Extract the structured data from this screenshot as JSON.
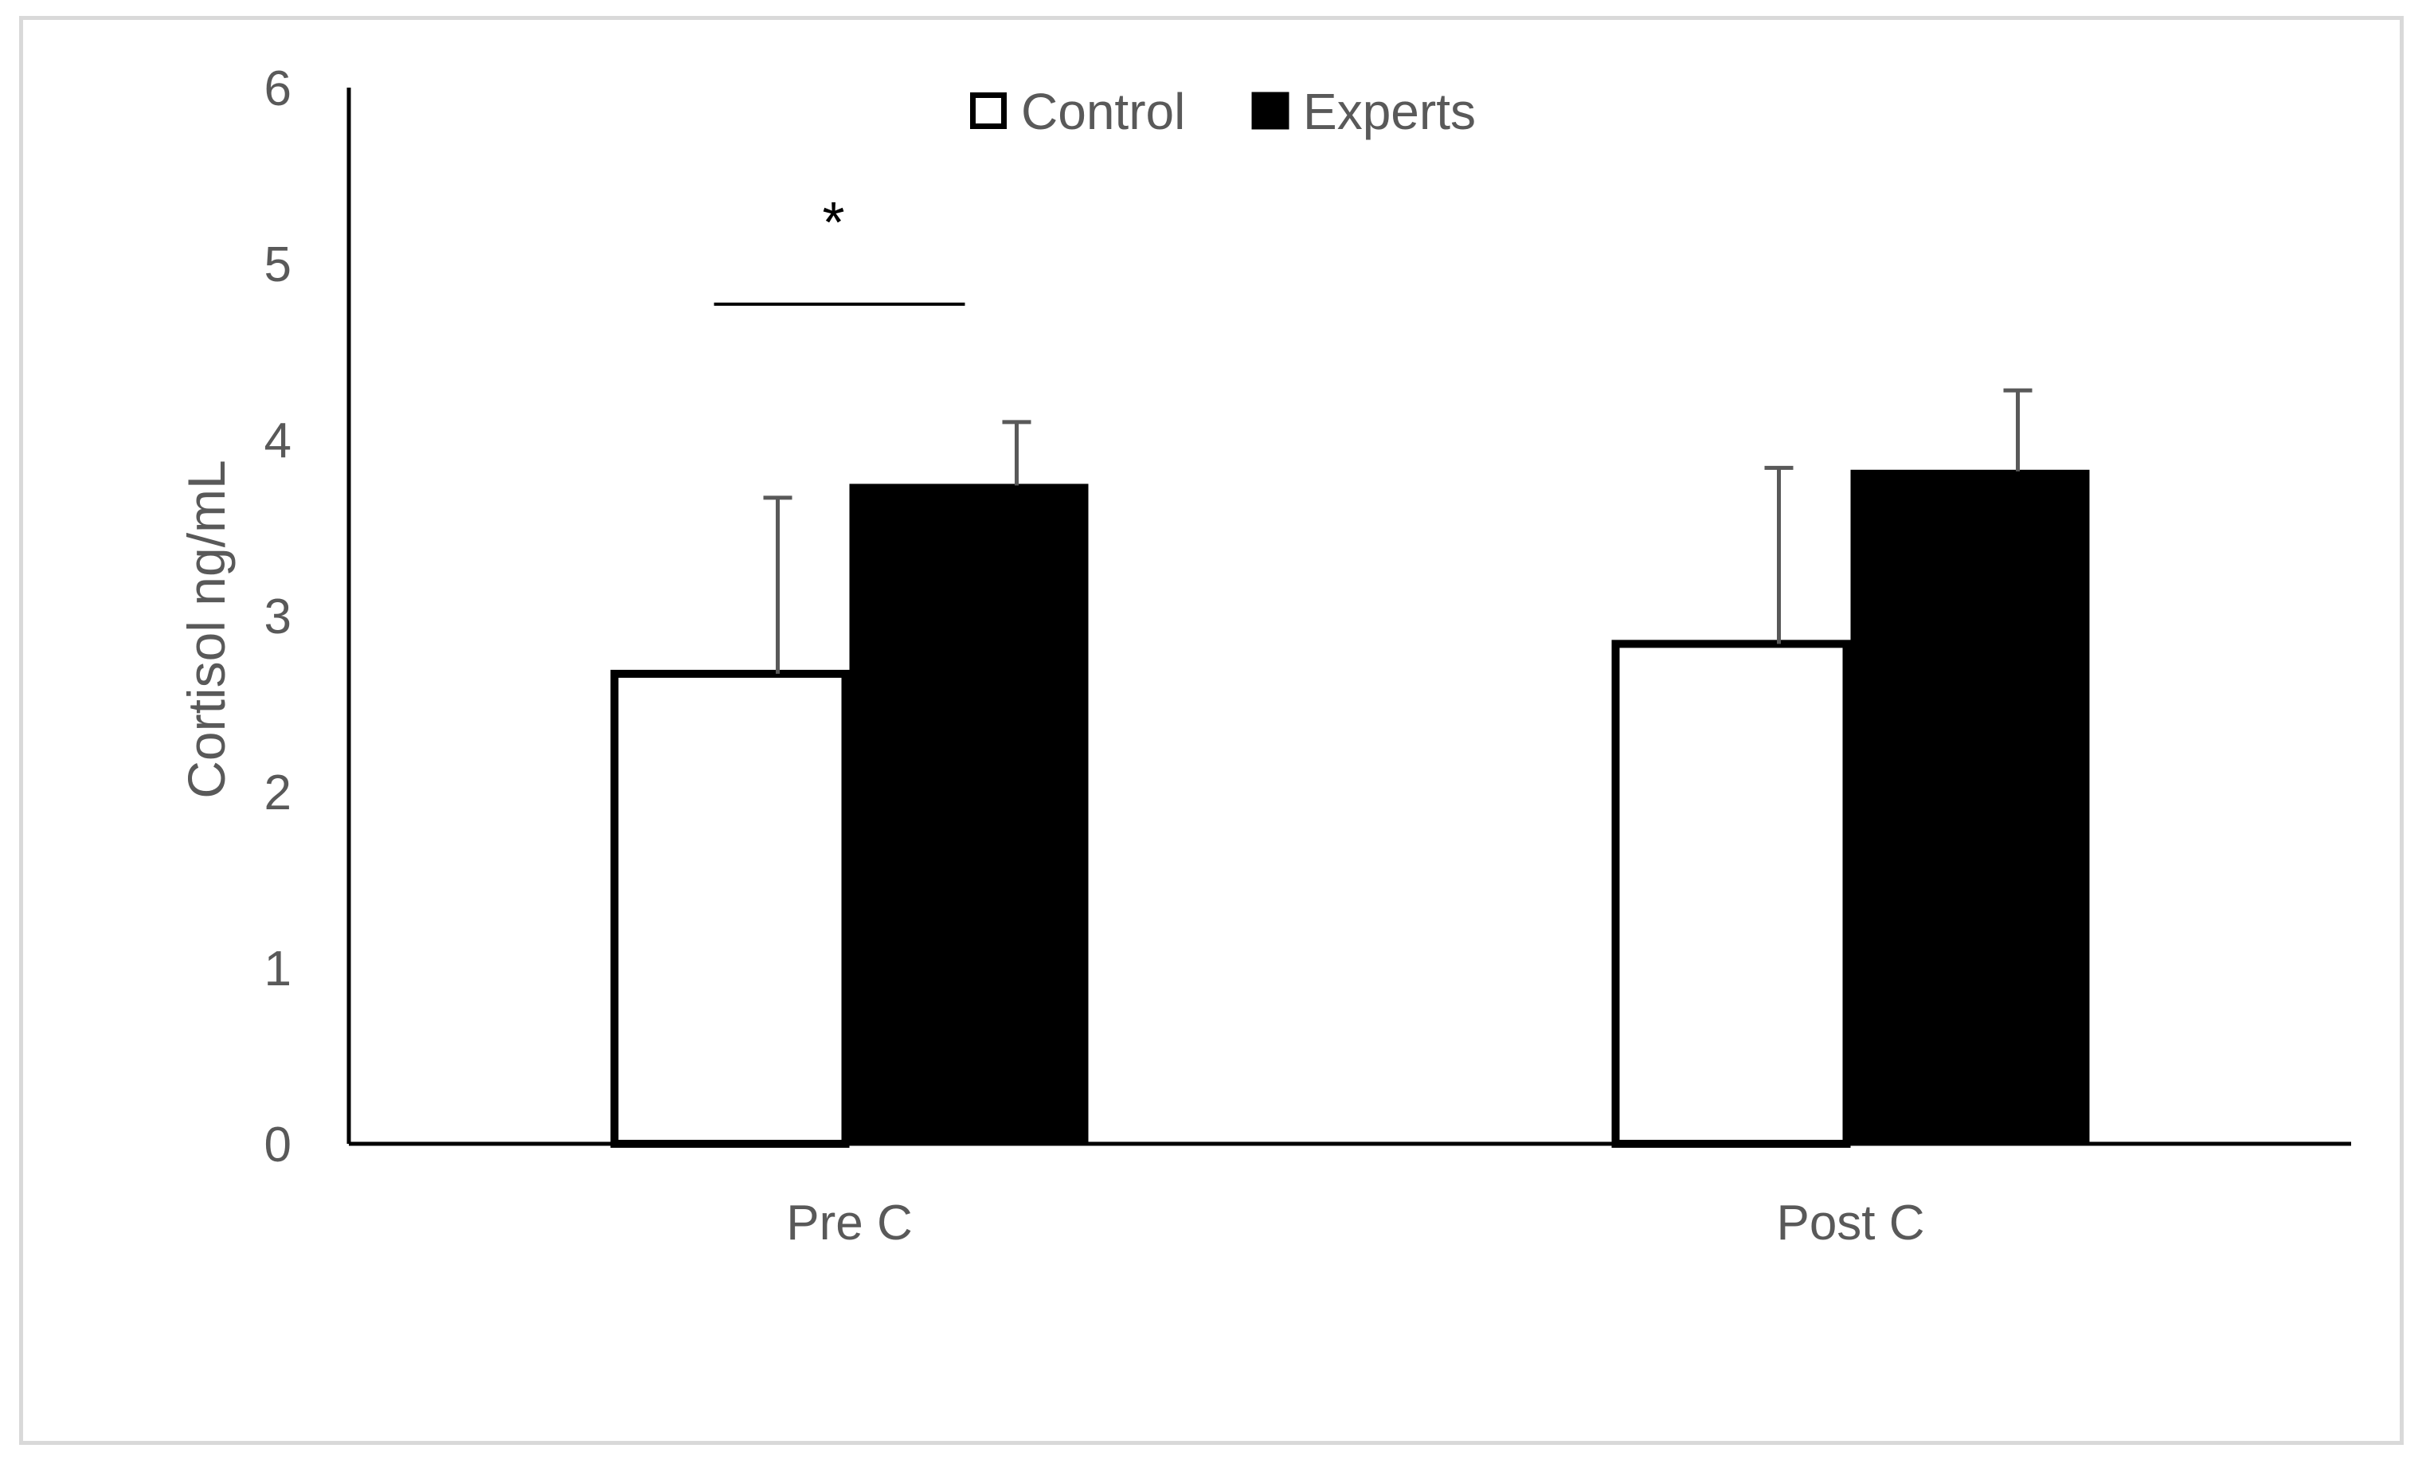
{
  "chart_data": {
    "type": "bar",
    "categories": [
      "Pre C",
      "Post C"
    ],
    "series": [
      {
        "name": "Control",
        "values": [
          2.67,
          2.84
        ],
        "errors": [
          1.0,
          1.0
        ],
        "color": "#ffffff",
        "stroke": "#000000"
      },
      {
        "name": "Experts",
        "values": [
          3.74,
          3.82
        ],
        "errors": [
          0.36,
          0.46
        ],
        "color": "#000000",
        "stroke": "#000000"
      }
    ],
    "title": "",
    "xlabel": "",
    "ylabel": "Cortisol ng/mL",
    "ylim": [
      0,
      6
    ],
    "yticks": [
      "0",
      "1",
      "2",
      "3",
      "4",
      "5",
      "6"
    ],
    "grid": false,
    "legend_position": "top",
    "annotations": [
      {
        "text": "*",
        "category": "Pre C",
        "bracket_y": 4.77
      }
    ]
  }
}
